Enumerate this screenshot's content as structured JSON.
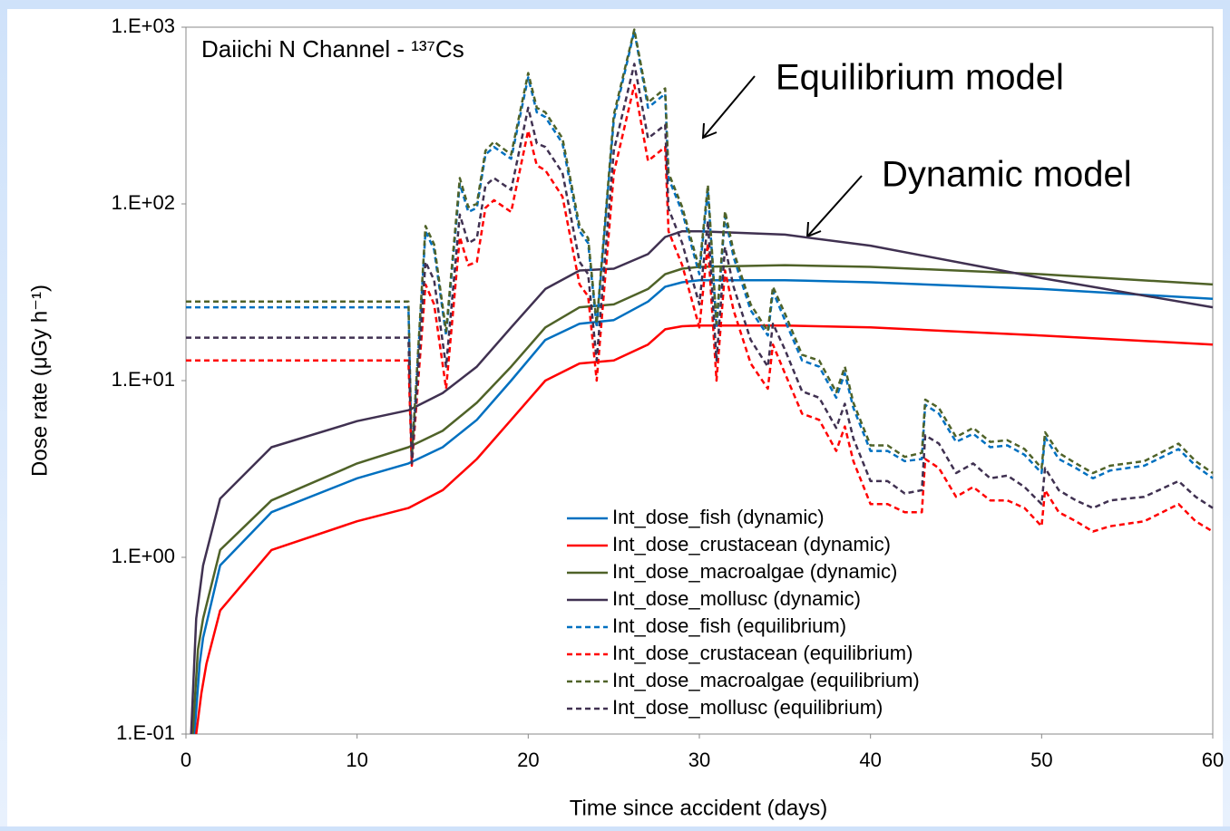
{
  "chart_data": {
    "type": "line",
    "title": "Daiichi N Channel - ¹³⁷Cs",
    "x_label": "Time since accident (days)",
    "y_label": "Dose rate (μGy h⁻¹)",
    "annotations": [
      "Equilibrium model",
      "Dynamic model"
    ],
    "log_y": true,
    "legend": "lower center",
    "xlim": [
      0,
      60
    ],
    "xticks": [
      0,
      10,
      20,
      30,
      40,
      50,
      60
    ],
    "ylim": [
      0.1,
      1000
    ],
    "yticks": [
      {
        "value": 0.1,
        "label": "1.E-01"
      },
      {
        "value": 1,
        "label": "1.E+00"
      },
      {
        "value": 10,
        "label": "1.E+01"
      },
      {
        "value": 100,
        "label": "1.E+02"
      },
      {
        "value": 1000,
        "label": "1.E+03"
      }
    ],
    "series": [
      {
        "name": "Int_dose_fish (dynamic)",
        "color": "#0070c0",
        "style": "solid",
        "x": [
          0.5,
          0.8,
          1,
          2,
          5,
          10,
          13,
          15,
          17,
          19,
          21,
          23,
          25,
          27,
          28,
          29,
          30,
          35,
          40,
          50,
          60
        ],
        "values": [
          0.1,
          0.25,
          0.35,
          0.9,
          1.8,
          2.8,
          3.4,
          4.2,
          6,
          10,
          17,
          21,
          22,
          28,
          34,
          36,
          37,
          37,
          36,
          33,
          29
        ]
      },
      {
        "name": "Int_dose_crustacean (dynamic)",
        "color": "#ff0000",
        "style": "solid",
        "x": [
          0.6,
          0.9,
          1.2,
          2,
          5,
          10,
          13,
          15,
          17,
          19,
          21,
          23,
          25,
          27,
          28,
          29,
          30,
          35,
          40,
          50,
          60
        ],
        "values": [
          0.1,
          0.17,
          0.25,
          0.5,
          1.1,
          1.6,
          1.9,
          2.4,
          3.6,
          6,
          10,
          12.5,
          13,
          16,
          19.5,
          20.3,
          20.5,
          20.5,
          20,
          18,
          16
        ]
      },
      {
        "name": "Int_dose_macroalgae (dynamic)",
        "color": "#4f6228",
        "style": "solid",
        "x": [
          0.4,
          0.7,
          1,
          2,
          5,
          10,
          13,
          15,
          17,
          19,
          21,
          23,
          25,
          27,
          28,
          29,
          30,
          35,
          40,
          50,
          60
        ],
        "values": [
          0.1,
          0.3,
          0.45,
          1.1,
          2.1,
          3.4,
          4.2,
          5.2,
          7.5,
          12,
          20,
          26,
          27,
          33,
          40,
          43,
          44,
          45,
          44,
          40,
          35
        ]
      },
      {
        "name": "Int_dose_mollusc (dynamic)",
        "color": "#403151",
        "style": "solid",
        "x": [
          0.3,
          0.6,
          1,
          2,
          5,
          10,
          13,
          15,
          17,
          19,
          21,
          23,
          25,
          27,
          28,
          29,
          30,
          35,
          40,
          50,
          60
        ],
        "values": [
          0.1,
          0.45,
          0.9,
          2.15,
          4.2,
          5.9,
          6.8,
          8.5,
          12,
          20,
          33,
          42,
          43,
          52,
          65,
          70,
          70,
          67,
          58,
          38,
          26
        ]
      },
      {
        "name": "Int_dose_fish (equilibrium)",
        "color": "#0070c0",
        "style": "dashed",
        "x": [
          0,
          13,
          13.2,
          14,
          14.5,
          15.2,
          16,
          16.5,
          17,
          17.5,
          18,
          19,
          20,
          20.5,
          21,
          22,
          23,
          23.5,
          24,
          25,
          26.2,
          27,
          28,
          28.2,
          29,
          30,
          30.5,
          31,
          31.5,
          32,
          33,
          34,
          34.3,
          35,
          36,
          37,
          38,
          38.5,
          39,
          40,
          41,
          42,
          43,
          43.2,
          44,
          45,
          46,
          47,
          48,
          49,
          50,
          50.2,
          51,
          52,
          53,
          54,
          56,
          58,
          59,
          60
        ],
        "values": [
          26,
          26,
          3.5,
          70,
          55,
          18,
          130,
          90,
          95,
          190,
          210,
          180,
          520,
          330,
          310,
          220,
          70,
          60,
          20,
          300,
          950,
          350,
          420,
          140,
          90,
          40,
          120,
          20,
          85,
          50,
          25,
          18,
          32,
          22,
          13,
          12,
          8,
          11,
          7,
          4,
          4,
          3.5,
          3.6,
          7.3,
          6.5,
          4.5,
          5,
          4.2,
          4.3,
          3.8,
          3,
          4.8,
          3.6,
          3.2,
          2.8,
          3.1,
          3.3,
          4.1,
          3.3,
          2.8
        ]
      },
      {
        "name": "Int_dose_crustacean (equilibrium)",
        "color": "#ff0000",
        "style": "dashed",
        "x": [
          0,
          13,
          13.2,
          14,
          14.5,
          15.2,
          16,
          16.5,
          17,
          17.5,
          18,
          19,
          20,
          20.5,
          21,
          22,
          23,
          23.5,
          24,
          25,
          26.2,
          27,
          28,
          28.2,
          29,
          30,
          30.5,
          31,
          31.5,
          32,
          33,
          34,
          34.3,
          35,
          36,
          37,
          38,
          38.5,
          39,
          40,
          41,
          42,
          43,
          43.2,
          44,
          45,
          46,
          47,
          48,
          49,
          50,
          50.2,
          51,
          52,
          53,
          54,
          56,
          58,
          59,
          60
        ],
        "values": [
          13,
          13,
          3.3,
          35,
          27,
          9,
          65,
          45,
          47,
          95,
          105,
          90,
          260,
          165,
          155,
          110,
          35,
          30,
          10,
          150,
          470,
          175,
          210,
          70,
          45,
          20,
          60,
          10,
          42,
          25,
          12.5,
          9,
          16,
          11,
          6.5,
          6,
          4,
          5.5,
          3.5,
          2,
          2,
          1.8,
          1.8,
          3.6,
          3.2,
          2.2,
          2.5,
          2.1,
          2.1,
          1.9,
          1.5,
          2.4,
          1.8,
          1.6,
          1.4,
          1.5,
          1.6,
          2,
          1.6,
          1.4
        ]
      },
      {
        "name": "Int_dose_macroalgae (equilibrium)",
        "color": "#4f6228",
        "style": "dashed",
        "x": [
          0,
          13,
          13.2,
          14,
          14.5,
          15.2,
          16,
          16.5,
          17,
          17.5,
          18,
          19,
          20,
          20.5,
          21,
          22,
          23,
          23.5,
          24,
          25,
          26.2,
          27,
          28,
          28.2,
          29,
          30,
          30.5,
          31,
          31.5,
          32,
          33,
          34,
          34.3,
          35,
          36,
          37,
          38,
          38.5,
          39,
          40,
          41,
          42,
          43,
          43.2,
          44,
          45,
          46,
          47,
          48,
          49,
          50,
          50.2,
          51,
          52,
          53,
          54,
          56,
          58,
          59,
          60
        ],
        "values": [
          28,
          28,
          3.7,
          75,
          59,
          19,
          140,
          96,
          100,
          200,
          225,
          190,
          550,
          350,
          330,
          235,
          75,
          64,
          21,
          320,
          970,
          375,
          450,
          150,
          96,
          43,
          128,
          21,
          91,
          54,
          27,
          19,
          34,
          24,
          14,
          13,
          8.6,
          12,
          7.5,
          4.3,
          4.3,
          3.7,
          3.9,
          7.8,
          7,
          4.8,
          5.4,
          4.5,
          4.6,
          4.1,
          3.2,
          5.1,
          3.9,
          3.4,
          3,
          3.3,
          3.5,
          4.4,
          3.5,
          3
        ]
      },
      {
        "name": "Int_dose_mollusc (equilibrium)",
        "color": "#403151",
        "style": "dashed",
        "x": [
          0,
          13,
          13.2,
          14,
          14.5,
          15.2,
          16,
          16.5,
          17,
          17.5,
          18,
          19,
          20,
          20.5,
          21,
          22,
          23,
          23.5,
          24,
          25,
          26.2,
          27,
          28,
          28.2,
          29,
          30,
          30.5,
          31,
          31.5,
          32,
          33,
          34,
          34.3,
          35,
          36,
          37,
          38,
          38.5,
          39,
          40,
          41,
          42,
          43,
          43.2,
          44,
          45,
          46,
          47,
          48,
          49,
          50,
          50.2,
          51,
          52,
          53,
          54,
          56,
          58,
          59,
          60
        ],
        "values": [
          17.5,
          17.5,
          3.4,
          47,
          37,
          12,
          87,
          60,
          64,
          127,
          140,
          120,
          350,
          220,
          210,
          150,
          47,
          40,
          13,
          200,
          620,
          235,
          280,
          94,
          60,
          27,
          80,
          13,
          57,
          34,
          17,
          12,
          21,
          15,
          8.7,
          8,
          5.4,
          7.4,
          4.7,
          2.7,
          2.7,
          2.3,
          2.4,
          4.9,
          4.4,
          3,
          3.4,
          2.8,
          2.9,
          2.5,
          2,
          3.2,
          2.4,
          2.1,
          1.9,
          2.1,
          2.2,
          2.7,
          2.2,
          1.9
        ]
      }
    ]
  }
}
